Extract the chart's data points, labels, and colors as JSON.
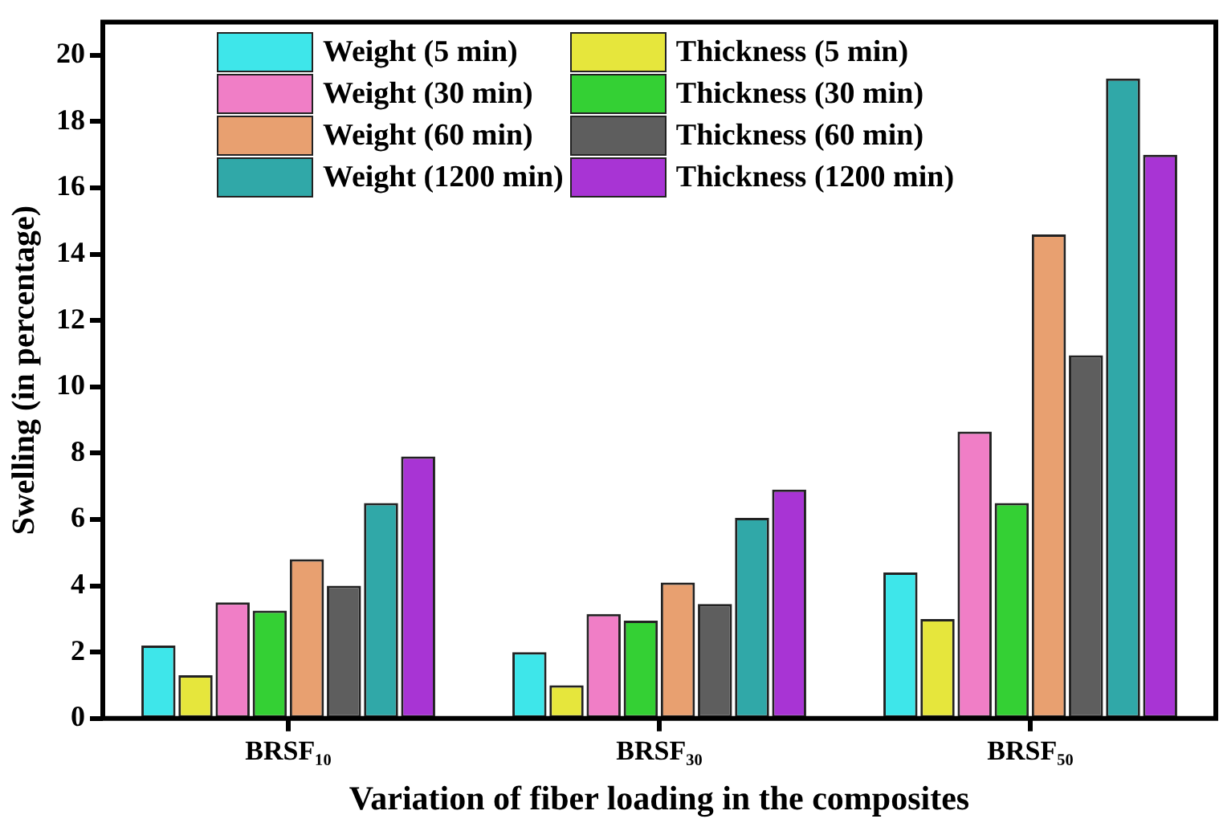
{
  "chart_data": {
    "type": "bar",
    "xlabel": "Variation of fiber loading in the composites",
    "ylabel": "Swelling (in percentage)",
    "categories": [
      "BRSF₁₀",
      "BRSF₃₀",
      "BRSF₅₀"
    ],
    "series": [
      {
        "name": "Weight (5 min)",
        "color": "#3ee6ea",
        "values": [
          2.2,
          2.0,
          4.4
        ]
      },
      {
        "name": "Thickness (5 min)",
        "color": "#e6e63c",
        "values": [
          1.3,
          1.0,
          3.0
        ]
      },
      {
        "name": "Weight (30 min)",
        "color": "#f07ec6",
        "values": [
          3.5,
          3.15,
          8.65
        ]
      },
      {
        "name": "Thickness (30 min)",
        "color": "#34d034",
        "values": [
          3.25,
          2.95,
          6.5
        ]
      },
      {
        "name": "Weight (60 min)",
        "color": "#e8a070",
        "values": [
          4.8,
          4.1,
          14.6
        ]
      },
      {
        "name": "Thickness (60 min)",
        "color": "#5e5e5e",
        "values": [
          4.0,
          3.45,
          10.95
        ]
      },
      {
        "name": "Weight (1200 min)",
        "color": "#30a8a8",
        "values": [
          6.5,
          6.05,
          19.3
        ]
      },
      {
        "name": "Thickness (1200 min)",
        "color": "#a834d4",
        "values": [
          7.9,
          6.9,
          17.0
        ]
      }
    ],
    "ylim": [
      0,
      21
    ],
    "yticks": [
      0,
      2,
      4,
      6,
      8,
      10,
      12,
      14,
      16,
      18,
      20
    ],
    "grid": false,
    "legend": "top left"
  }
}
